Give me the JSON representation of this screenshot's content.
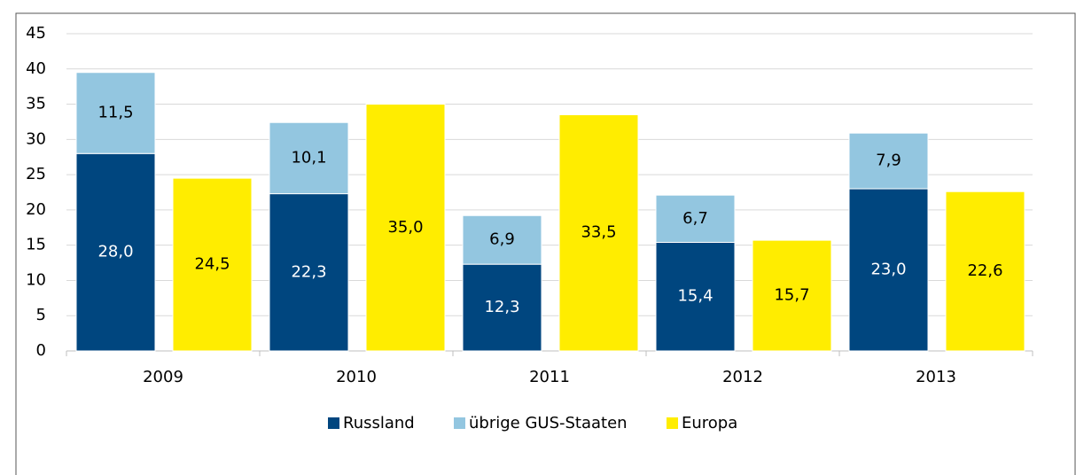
{
  "chart_data": {
    "type": "bar",
    "categories": [
      "2009",
      "2010",
      "2011",
      "2012",
      "2013"
    ],
    "series": [
      {
        "name": "Russland",
        "color": "#00467f",
        "stack": "GUS",
        "values": [
          28.0,
          22.3,
          12.3,
          15.4,
          23.0
        ],
        "value_labels": [
          "28,0",
          "22,3",
          "12,3",
          "15,4",
          "23,0"
        ]
      },
      {
        "name": "übrige GUS-Staaten",
        "color": "#93c6e0",
        "stack": "GUS",
        "values": [
          11.5,
          10.1,
          6.9,
          6.7,
          7.9
        ],
        "value_labels": [
          "11,5",
          "10,1",
          "6,9",
          "6,7",
          "7,9"
        ]
      },
      {
        "name": "Europa",
        "color": "#ffed00",
        "stack": "EU",
        "values": [
          24.5,
          35.0,
          33.5,
          15.7,
          22.6
        ],
        "value_labels": [
          "24,5",
          "35,0",
          "33,5",
          "15,7",
          "22,6"
        ]
      }
    ],
    "ylim": [
      0,
      45
    ],
    "yticks": [
      0,
      5,
      10,
      15,
      20,
      25,
      30,
      35,
      40,
      45
    ],
    "grid": true,
    "legend": "bottom"
  }
}
